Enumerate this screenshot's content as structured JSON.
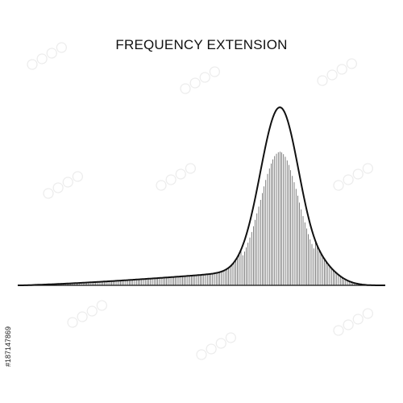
{
  "title": "FREQUENCY EXTENSION",
  "stock_id": "#187147869",
  "colors": {
    "background": "#ffffff",
    "curve": "#111111",
    "hatch": "#222222",
    "watermark": "#e9e9e9"
  },
  "diagram": {
    "type": "skewed-distribution-curve",
    "skew": "left",
    "fill": "vertical-hatching"
  }
}
